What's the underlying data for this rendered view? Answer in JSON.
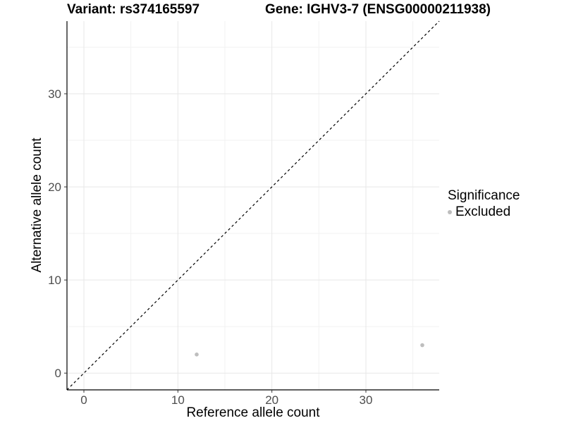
{
  "header": {
    "variant_title": "Variant: rs374165597",
    "gene_title": "Gene: IGHV3-7 (ENSG00000211938)"
  },
  "chart_data": {
    "type": "scatter",
    "title_left": "Variant: rs374165597",
    "title_right": "Gene: IGHV3-7 (ENSG00000211938)",
    "xlabel": "Reference allele count",
    "ylabel": "Alternative allele count",
    "xlim": [
      -1.8,
      37.8
    ],
    "ylim": [
      -1.8,
      37.8
    ],
    "x_major_ticks": [
      0,
      10,
      20,
      30
    ],
    "y_major_ticks": [
      0,
      10,
      20,
      30
    ],
    "x_minor_ticks": [
      5,
      15,
      25,
      35
    ],
    "y_minor_ticks": [
      5,
      15,
      25,
      35
    ],
    "grid": true,
    "identity_line": {
      "style": "dashed",
      "color": "#000000"
    },
    "series": [
      {
        "name": "Excluded",
        "color": "#bebebe",
        "points": [
          {
            "x": 12,
            "y": 2
          },
          {
            "x": 36,
            "y": 3
          }
        ]
      }
    ],
    "legend": {
      "title": "Significance",
      "position": "right",
      "items": [
        {
          "label": "Excluded",
          "color": "#bdbdbd"
        }
      ]
    },
    "colors": {
      "background": "#ffffff",
      "grid_major": "#e7e7e7",
      "grid_minor": "#f2f2f2",
      "axis_line": "#000000",
      "tick_mark": "#333333",
      "tick_label": "#4d4d4d",
      "text": "#000000"
    },
    "point_radius": 2.8
  }
}
